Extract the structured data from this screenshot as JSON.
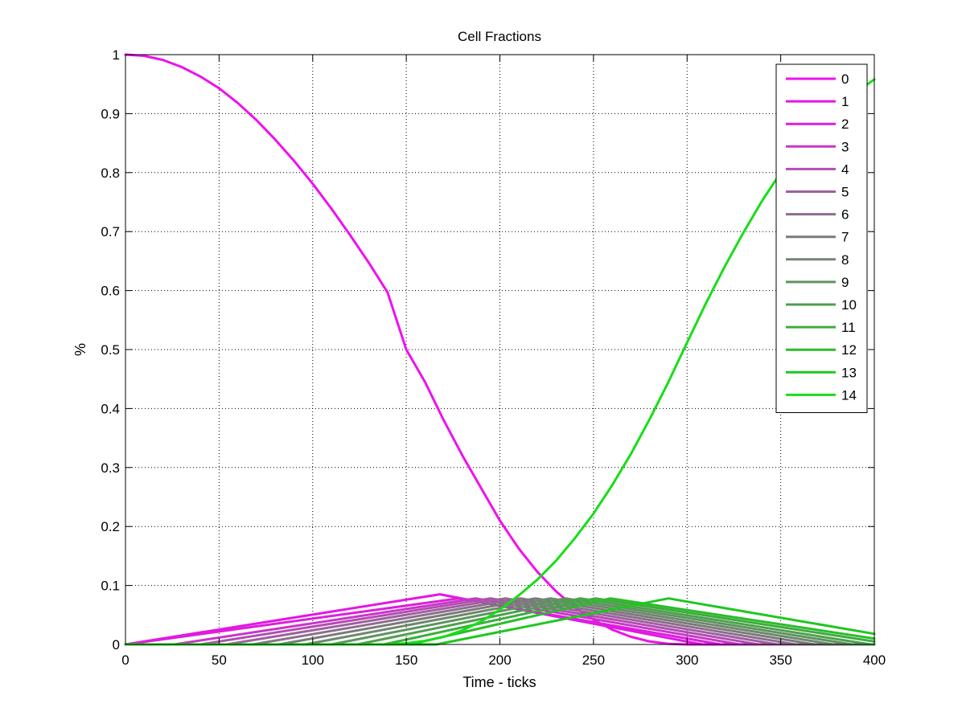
{
  "chart_data": {
    "type": "line",
    "title": "Cell Fractions",
    "xlabel": "Time - ticks",
    "ylabel": "%",
    "xlim": [
      0,
      400
    ],
    "ylim": [
      0,
      1
    ],
    "xticks": [
      0,
      50,
      100,
      150,
      200,
      250,
      300,
      350,
      400
    ],
    "yticks": [
      0,
      0.1,
      0.2,
      0.3,
      0.4,
      0.5,
      0.6,
      0.7,
      0.8,
      0.9,
      1
    ],
    "grid": true,
    "legend_position": "top-right",
    "series": [
      {
        "name": "0",
        "color": "#ee11ee",
        "x": [
          0,
          10,
          20,
          30,
          40,
          50,
          60,
          70,
          80,
          90,
          100,
          110,
          120,
          130,
          140,
          150,
          160,
          170,
          180,
          190,
          200,
          210,
          220,
          230,
          240,
          250,
          260,
          270,
          280,
          290,
          300,
          310,
          320,
          330,
          340,
          350,
          360,
          370,
          380,
          390,
          400
        ],
        "values": [
          1,
          0.998,
          0.991,
          0.979,
          0.963,
          0.943,
          0.918,
          0.889,
          0.856,
          0.82,
          0.781,
          0.739,
          0.694,
          0.647,
          0.597,
          0.5,
          0.445,
          0.38,
          0.32,
          0.265,
          0.21,
          0.163,
          0.123,
          0.09,
          0.063,
          0.042,
          0.025,
          0.013,
          0.005,
          0.001,
          0,
          0,
          0,
          0,
          0,
          0,
          0,
          0,
          0,
          0,
          0
        ]
      },
      {
        "name": "1",
        "color": "#e614e6",
        "x": [
          0,
          168,
          308,
          400
        ],
        "values": [
          0,
          0.085,
          0,
          0
        ]
      },
      {
        "name": "2",
        "color": "#dc1fdc",
        "x": [
          0,
          178,
          318,
          400
        ],
        "values": [
          0,
          0.078,
          0,
          0
        ]
      },
      {
        "name": "3",
        "color": "#c936c9",
        "x": [
          0,
          26,
          187,
          328,
          400
        ],
        "values": [
          0,
          0,
          0.078,
          0,
          0
        ]
      },
      {
        "name": "4",
        "color": "#b24db2",
        "x": [
          0,
          40,
          195,
          338,
          400
        ],
        "values": [
          0,
          0,
          0.078,
          0,
          0
        ]
      },
      {
        "name": "5",
        "color": "#a05fa0",
        "x": [
          0,
          54,
          203,
          348,
          400
        ],
        "values": [
          0,
          0,
          0.078,
          0,
          0
        ]
      },
      {
        "name": "6",
        "color": "#8c6e8c",
        "x": [
          0,
          68,
          211,
          358,
          400
        ],
        "values": [
          0,
          0,
          0.078,
          0,
          0
        ]
      },
      {
        "name": "7",
        "color": "#7a7a7a",
        "x": [
          0,
          82,
          219,
          368,
          400
        ],
        "values": [
          0,
          0,
          0.078,
          0,
          0
        ]
      },
      {
        "name": "8",
        "color": "#6f876f",
        "x": [
          0,
          96,
          227,
          378,
          400
        ],
        "values": [
          0,
          0,
          0.078,
          0,
          0
        ]
      },
      {
        "name": "9",
        "color": "#5e935e",
        "x": [
          0,
          110,
          235,
          388,
          400
        ],
        "values": [
          0,
          0,
          0.078,
          0,
          0
        ]
      },
      {
        "name": "10",
        "color": "#4ea04e",
        "x": [
          0,
          124,
          243,
          398,
          400
        ],
        "values": [
          0,
          0,
          0.078,
          0,
          0
        ]
      },
      {
        "name": "11",
        "color": "#3dad3d",
        "x": [
          0,
          138,
          251,
          400
        ],
        "values": [
          0,
          0,
          0.078,
          0.005
        ]
      },
      {
        "name": "12",
        "color": "#2bbc2b",
        "x": [
          0,
          152,
          259,
          400
        ],
        "values": [
          0,
          0,
          0.078,
          0.01
        ]
      },
      {
        "name": "13",
        "color": "#1fc71f",
        "x": [
          0,
          166,
          290,
          400
        ],
        "values": [
          0,
          0,
          0.078,
          0.018
        ]
      },
      {
        "name": "14",
        "color": "#18dd18",
        "x": [
          0,
          140,
          150,
          160,
          170,
          180,
          190,
          200,
          210,
          220,
          230,
          240,
          250,
          260,
          270,
          280,
          290,
          300,
          310,
          320,
          330,
          340,
          350,
          360,
          370,
          380,
          390,
          400
        ],
        "values": [
          0,
          0,
          0.002,
          0.006,
          0.013,
          0.024,
          0.039,
          0.059,
          0.083,
          0.11,
          0.142,
          0.18,
          0.222,
          0.27,
          0.323,
          0.382,
          0.445,
          0.512,
          0.578,
          0.64,
          0.698,
          0.752,
          0.8,
          0.842,
          0.878,
          0.91,
          0.935,
          0.958
        ]
      }
    ]
  }
}
